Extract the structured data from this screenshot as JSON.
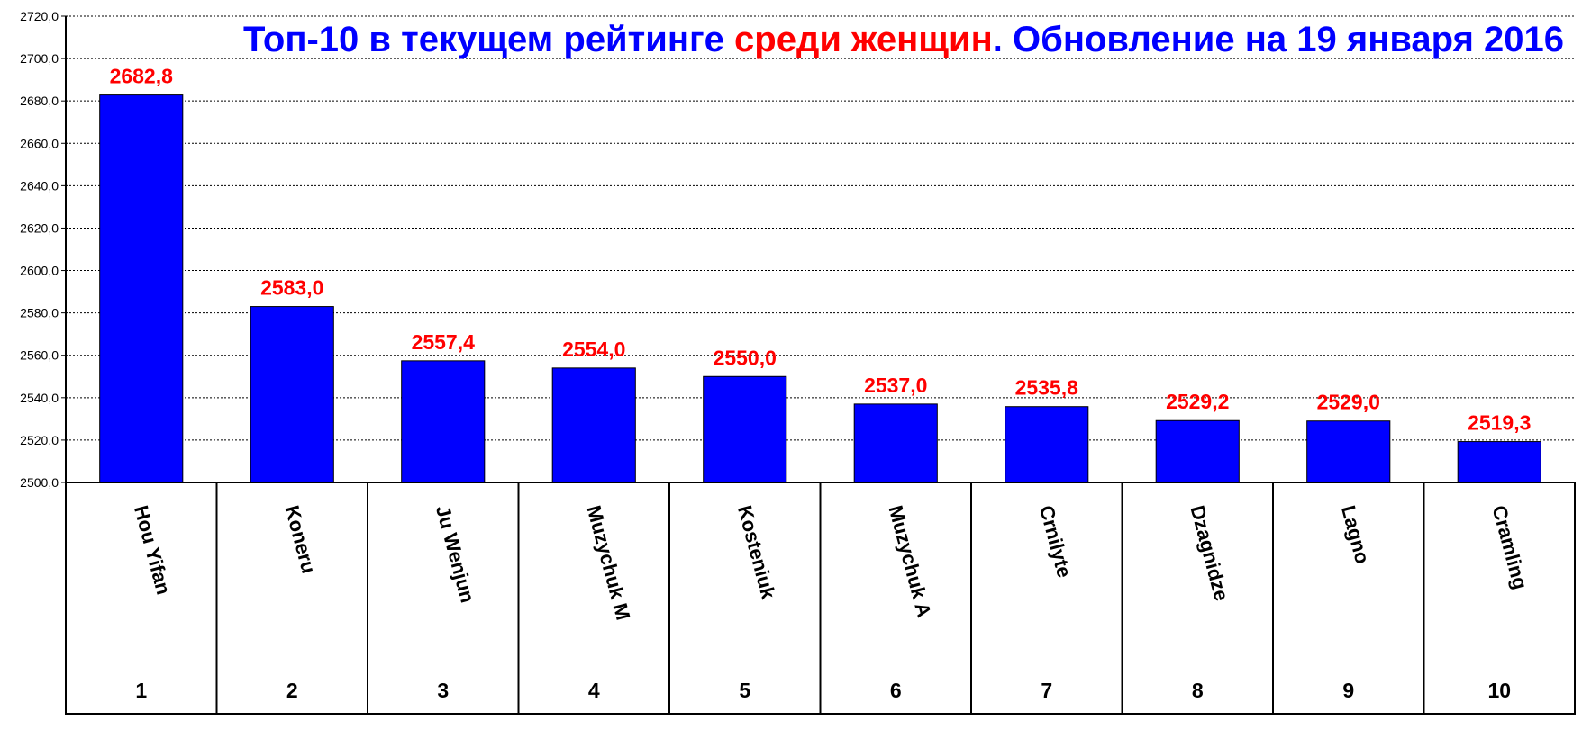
{
  "chart_data": {
    "type": "bar",
    "title_parts": [
      {
        "text": "Топ-10 в текущем рейтинге ",
        "color": "#0000ff"
      },
      {
        "text": "среди женщин",
        "color": "#ff0000"
      },
      {
        "text": ". Обновление на 19 января 2016",
        "color": "#0000ff"
      }
    ],
    "categories": [
      "Hou Yifan",
      "Koneru",
      "Ju Wenjun",
      "Muzychuk M",
      "Kosteniuk",
      "Muzychuk A",
      "Crnilyte",
      "Dzagnidze",
      "Lagno",
      "Cramling"
    ],
    "ranks": [
      "1",
      "2",
      "3",
      "4",
      "5",
      "6",
      "7",
      "8",
      "9",
      "10"
    ],
    "values": [
      2682.8,
      2583.0,
      2557.4,
      2554.0,
      2550.0,
      2537.0,
      2535.8,
      2529.2,
      2529.0,
      2519.3
    ],
    "value_labels": [
      "2682,8",
      "2583,0",
      "2557,4",
      "2554,0",
      "2550,0",
      "2537,0",
      "2535,8",
      "2529,2",
      "2529,0",
      "2519,3"
    ],
    "ylim": [
      2500,
      2720
    ],
    "ytick_step": 20,
    "ytick_labels": [
      "2500,0",
      "2520,0",
      "2540,0",
      "2560,0",
      "2580,0",
      "2600,0",
      "2620,0",
      "2640,0",
      "2660,0",
      "2680,0",
      "2700,0",
      "2720,0"
    ],
    "grid": true,
    "bar_color": "#0000ff",
    "value_label_color": "#ff0000",
    "legend": "none"
  }
}
